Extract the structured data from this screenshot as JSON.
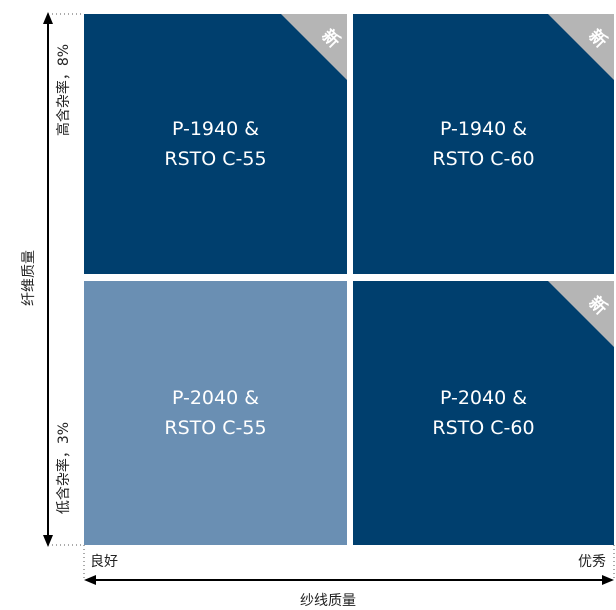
{
  "colors": {
    "dark_blue": "#003f6e",
    "light_blue": "#6a8fb3",
    "badge_gray": "#b5b5b5"
  },
  "quadrants": {
    "top_left": {
      "line1": "P-1940 &",
      "line2": "RSTO C-55",
      "badge": "新"
    },
    "top_right": {
      "line1": "P-1940 &",
      "line2": "RSTO C-60",
      "badge": "新"
    },
    "bottom_left": {
      "line1": "P-2040 &",
      "line2": "RSTO C-55"
    },
    "bottom_right": {
      "line1": "P-2040 &",
      "line2": "RSTO C-60",
      "badge": "新"
    }
  },
  "y_axis": {
    "title": "纤维质量",
    "top_label": "高含杂率，8%",
    "bottom_label": "低含杂率，3%"
  },
  "x_axis": {
    "title": "纱线质量",
    "left_label": "良好",
    "right_label": "优秀"
  }
}
